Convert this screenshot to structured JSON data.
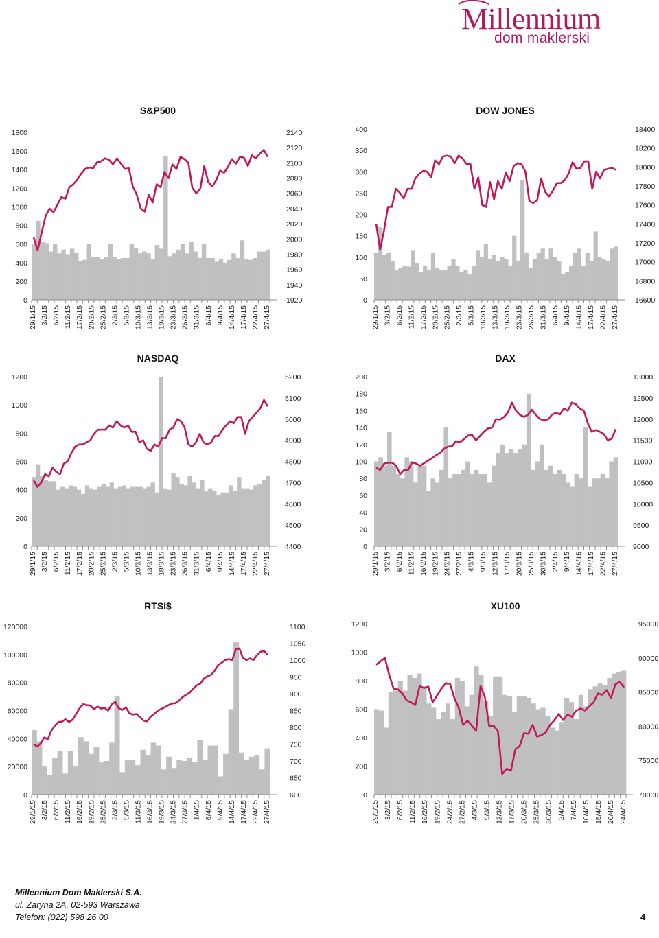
{
  "brand": {
    "name": "Millennium",
    "subtitle": "dom maklerski",
    "color": "#b01a5e"
  },
  "style": {
    "bar_color": "#c0c0c0",
    "line_color": "#c2185b",
    "axis_color": "#888888"
  },
  "footer": {
    "company": "Millennium Dom Maklerski S.A.",
    "address": "ul. Żaryna 2A, 02-593 Warszawa",
    "phone": "Telefon: (022) 598 26 00",
    "page_number": "4"
  },
  "chart_data": [
    {
      "type": "bar-line",
      "title": "S&P500",
      "left_axis": {
        "ticks": [
          "0",
          "200",
          "400",
          "600",
          "800",
          "1000",
          "1200",
          "1400",
          "1600",
          "1800"
        ],
        "range": [
          0,
          1800
        ]
      },
      "right_axis": {
        "ticks": [
          "1920",
          "1940",
          "1960",
          "1980",
          "2000",
          "2020",
          "2040",
          "2060",
          "2080",
          "2100",
          "2120",
          "2140"
        ],
        "range": [
          1920,
          2140
        ]
      },
      "x_labels": [
        "29/1/15",
        "3/2/15",
        "6/2/15",
        "11/2/15",
        "17/2/15",
        "20/2/15",
        "25/2/15",
        "2/3/15",
        "5/3/15",
        "10/3/15",
        "13/3/15",
        "18/3/15",
        "23/3/15",
        "26/3/15",
        "31/3/15",
        "6/4/15",
        "9/4/15",
        "14/4/15",
        "17/4/15",
        "22/4/15",
        "27/4/15"
      ],
      "bars": [
        600,
        850,
        620,
        610,
        520,
        600,
        500,
        540,
        490,
        550,
        510,
        420,
        430,
        600,
        460,
        460,
        440,
        460,
        600,
        460,
        440,
        450,
        450,
        600,
        560,
        500,
        520,
        500,
        440,
        590,
        550,
        1550,
        470,
        500,
        540,
        600,
        500,
        620,
        520,
        450,
        600,
        450,
        450,
        410,
        440,
        400,
        430,
        500,
        450,
        640,
        440,
        430,
        450,
        520,
        520,
        540
      ],
      "line": [
        2002,
        1985,
        2008,
        2030,
        2040,
        2035,
        2045,
        2055,
        2053,
        2068,
        2072,
        2078,
        2086,
        2092,
        2094,
        2093,
        2101,
        2102,
        2106,
        2104,
        2098,
        2106,
        2099,
        2092,
        2093,
        2069,
        2058,
        2040,
        2036,
        2058,
        2048,
        2072,
        2068,
        2088,
        2080,
        2098,
        2092,
        2108,
        2105,
        2100,
        2067,
        2060,
        2066,
        2096,
        2075,
        2069,
        2077,
        2090,
        2087,
        2095,
        2105,
        2099,
        2108,
        2107,
        2096,
        2110,
        2106,
        2112,
        2117,
        2108
      ]
    },
    {
      "type": "bar-line",
      "title": "DOW JONES",
      "left_axis": {
        "ticks": [
          "0",
          "50",
          "100",
          "150",
          "200",
          "250",
          "300",
          "350",
          "400"
        ],
        "range": [
          0,
          400
        ]
      },
      "right_axis": {
        "ticks": [
          "16600",
          "16800",
          "17000",
          "17200",
          "17400",
          "17600",
          "17800",
          "18000",
          "18200",
          "18400"
        ],
        "range": [
          16600,
          18400
        ]
      },
      "x_labels": [
        "29/1/15",
        "3/2/15",
        "6/2/15",
        "11/2/15",
        "17/2/15",
        "20/2/15",
        "25/2/15",
        "2/3/15",
        "5/3/15",
        "10/3/15",
        "13/3/15",
        "18/3/15",
        "23/3/15",
        "26/3/15",
        "31/3/15",
        "6/4/15",
        "9/4/15",
        "14/4/15",
        "17/4/15",
        "22/4/15",
        "27/4/15"
      ],
      "bars": [
        110,
        170,
        105,
        110,
        90,
        70,
        75,
        80,
        78,
        115,
        85,
        65,
        80,
        70,
        110,
        75,
        70,
        70,
        80,
        95,
        80,
        65,
        70,
        60,
        80,
        115,
        100,
        130,
        95,
        105,
        90,
        100,
        95,
        80,
        150,
        90,
        280,
        110,
        75,
        95,
        110,
        120,
        95,
        120,
        100,
        90,
        60,
        65,
        80,
        110,
        120,
        80,
        110,
        90,
        160,
        100,
        95,
        90,
        120,
        125
      ],
      "line": [
        17400,
        17130,
        17330,
        17580,
        17580,
        17770,
        17730,
        17670,
        17770,
        17770,
        17880,
        17930,
        17960,
        17950,
        17890,
        18070,
        18030,
        18110,
        18120,
        18110,
        18040,
        18120,
        18090,
        18030,
        18030,
        17770,
        17890,
        17600,
        17580,
        17840,
        17660,
        17850,
        17770,
        17940,
        17850,
        18010,
        18040,
        18030,
        17950,
        17640,
        17620,
        17650,
        17880,
        17740,
        17690,
        17750,
        17830,
        17830,
        17860,
        17930,
        18050,
        17980,
        17990,
        18060,
        18060,
        17770,
        17950,
        17880,
        17970,
        17980,
        17990,
        17970
      ]
    },
    {
      "type": "bar-line",
      "title": "NASDAQ",
      "left_axis": {
        "ticks": [
          "0",
          "200",
          "400",
          "600",
          "800",
          "1000",
          "1200"
        ],
        "range": [
          0,
          1200
        ]
      },
      "right_axis": {
        "ticks": [
          "4400",
          "4500",
          "4600",
          "4700",
          "4800",
          "4900",
          "5000",
          "5100",
          "5200"
        ],
        "range": [
          4400,
          5200
        ]
      },
      "x_labels": [
        "29/1/15",
        "3/2/15",
        "6/2/15",
        "11/2/15",
        "17/2/15",
        "20/2/15",
        "25/2/15",
        "2/3/15",
        "5/3/15",
        "10/3/15",
        "13/3/15",
        "18/3/15",
        "23/3/15",
        "26/3/15",
        "31/3/15",
        "6/4/15",
        "9/4/15",
        "14/4/15",
        "17/4/15",
        "22/4/15",
        "27/4/15"
      ],
      "bars": [
        490,
        580,
        500,
        470,
        460,
        460,
        400,
        420,
        410,
        430,
        420,
        400,
        370,
        430,
        410,
        400,
        420,
        440,
        420,
        450,
        410,
        420,
        430,
        410,
        420,
        420,
        420,
        410,
        420,
        450,
        380,
        1200,
        410,
        400,
        520,
        490,
        440,
        430,
        500,
        450,
        410,
        470,
        390,
        410,
        390,
        360,
        380,
        380,
        430,
        390,
        490,
        410,
        410,
        400,
        430,
        440,
        470,
        500
      ],
      "line": [
        4710,
        4680,
        4700,
        4740,
        4730,
        4770,
        4750,
        4740,
        4790,
        4800,
        4840,
        4870,
        4880,
        4880,
        4890,
        4900,
        4930,
        4950,
        4950,
        4950,
        4970,
        4960,
        4990,
        4970,
        4960,
        4970,
        4940,
        4940,
        4890,
        4900,
        4860,
        4850,
        4880,
        4870,
        4910,
        4910,
        4950,
        4960,
        5000,
        4990,
        4960,
        4880,
        4870,
        4890,
        4930,
        4890,
        4880,
        4890,
        4920,
        4920,
        4950,
        4970,
        4990,
        4980,
        5010,
        5010,
        4930,
        4990,
        5010,
        5030,
        5050,
        5090,
        5060
      ]
    },
    {
      "type": "bar-line",
      "title": "DAX",
      "left_axis": {
        "ticks": [
          "0",
          "20",
          "40",
          "60",
          "80",
          "100",
          "120",
          "140",
          "160",
          "180",
          "200"
        ],
        "range": [
          0,
          200
        ]
      },
      "right_axis": {
        "ticks": [
          "9000",
          "9500",
          "10000",
          "10500",
          "11000",
          "11500",
          "12000",
          "12500",
          "13000"
        ],
        "range": [
          9000,
          13000
        ]
      },
      "x_labels": [
        "29/1/15",
        "3/2/15",
        "6/2/15",
        "11/2/15",
        "16/2/15",
        "19/2/15",
        "24/2/15",
        "27/2/15",
        "4/3/15",
        "9/3/15",
        "12/3/15",
        "17/3/15",
        "20/3/15",
        "25/3/15",
        "30/3/15",
        "2/4/15",
        "9/4/15",
        "14/4/15",
        "17/4/15",
        "22/4/15",
        "27/4/15"
      ],
      "bars": [
        100,
        105,
        95,
        135,
        95,
        85,
        80,
        105,
        100,
        75,
        95,
        95,
        65,
        80,
        75,
        90,
        140,
        80,
        85,
        85,
        90,
        100,
        85,
        90,
        85,
        85,
        75,
        95,
        110,
        120,
        110,
        115,
        110,
        115,
        120,
        180,
        90,
        100,
        120,
        90,
        95,
        85,
        90,
        85,
        75,
        70,
        85,
        80,
        140,
        70,
        80,
        80,
        85,
        80,
        100,
        105
      ],
      "line": [
        10850,
        10800,
        10950,
        10970,
        10970,
        10900,
        10700,
        10800,
        10800,
        10980,
        10950,
        10900,
        10960,
        11020,
        11080,
        11150,
        11200,
        11300,
        11350,
        11360,
        11480,
        11450,
        11530,
        11610,
        11630,
        11500,
        11600,
        11700,
        11780,
        11800,
        12000,
        11990,
        12050,
        12160,
        12390,
        12200,
        12100,
        12050,
        12100,
        12220,
        12100,
        12000,
        11980,
        11990,
        12100,
        12150,
        12110,
        12250,
        12200,
        12390,
        12350,
        12250,
        12200,
        11900,
        11700,
        11740,
        11700,
        11650,
        11500,
        11540,
        11760
      ]
    },
    {
      "type": "bar-line",
      "title": "RTSI$",
      "left_axis": {
        "ticks": [
          "0",
          "20000",
          "40000",
          "60000",
          "80000",
          "100000",
          "120000"
        ],
        "range": [
          0,
          120000
        ]
      },
      "right_axis": {
        "ticks": [
          "600",
          "650",
          "700",
          "750",
          "800",
          "850",
          "900",
          "950",
          "1000",
          "1050",
          "1100"
        ],
        "range": [
          600,
          1100
        ]
      },
      "x_labels": [
        "29/1/15",
        "3/2/15",
        "6/2/15",
        "11/2/15",
        "16/2/15",
        "19/2/15",
        "25/2/15",
        "2/3/15",
        "5/3/15",
        "11/3/15",
        "16/3/15",
        "19/3/15",
        "24/3/15",
        "27/3/15",
        "1/4/15",
        "6/4/15",
        "9/4/15",
        "14/4/15",
        "17/4/15",
        "22/4/15",
        "27/4/15"
      ],
      "bars": [
        46000,
        38000,
        20000,
        14000,
        26000,
        31000,
        15000,
        31000,
        20000,
        41000,
        38000,
        29000,
        34000,
        23000,
        24000,
        37000,
        70000,
        16000,
        25000,
        25000,
        21000,
        32000,
        28000,
        37000,
        35000,
        18000,
        27000,
        19000,
        25000,
        24000,
        26000,
        23000,
        39000,
        25000,
        35000,
        35000,
        13000,
        29000,
        61000,
        109000,
        30000,
        25000,
        27000,
        28000,
        18000,
        33000
      ],
      "line": [
        750,
        743,
        752,
        770,
        765,
        790,
        805,
        816,
        817,
        824,
        816,
        823,
        840,
        858,
        869,
        866,
        865,
        854,
        862,
        856,
        858,
        850,
        868,
        876,
        857,
        852,
        860,
        842,
        838,
        840,
        830,
        820,
        818,
        832,
        840,
        850,
        855,
        860,
        866,
        871,
        872,
        880,
        890,
        897,
        903,
        915,
        925,
        930,
        945,
        952,
        956,
        968,
        985,
        992,
        1000,
        1003,
        1000,
        1032,
        1035,
        1007,
        1000,
        1005,
        1000,
        1015,
        1025,
        1027,
        1015
      ]
    },
    {
      "type": "bar-line",
      "title": "XU100",
      "left_axis": {
        "ticks": [
          "0",
          "200",
          "400",
          "600",
          "800",
          "1000",
          "1200"
        ],
        "range": [
          0,
          1200
        ]
      },
      "right_axis": {
        "ticks": [
          "70000",
          "75000",
          "80000",
          "85000",
          "90000",
          "95000"
        ],
        "range": [
          70000,
          95000
        ]
      },
      "x_labels": [
        "29/1/15",
        "3/2/15",
        "6/2/15",
        "11/2/15",
        "16/2/15",
        "19/2/15",
        "24/2/15",
        "27/2/15",
        "4/3/15",
        "9/3/15",
        "12/3/15",
        "17/3/15",
        "20/3/15",
        "25/3/15",
        "30/3/15",
        "2/4/15",
        "7/4/15",
        "10/4/15",
        "15/4/15",
        "20/4/15",
        "24/4/15"
      ],
      "bars": [
        600,
        590,
        470,
        720,
        730,
        800,
        730,
        840,
        820,
        850,
        760,
        640,
        610,
        530,
        580,
        640,
        530,
        820,
        800,
        620,
        700,
        900,
        840,
        660,
        550,
        830,
        830,
        700,
        690,
        580,
        690,
        690,
        680,
        640,
        600,
        610,
        550,
        470,
        450,
        510,
        680,
        650,
        530,
        700,
        620,
        740,
        760,
        780,
        770,
        820,
        850,
        860,
        870
      ],
      "line": [
        89000,
        89500,
        90000,
        87500,
        85500,
        85400,
        84800,
        83800,
        83500,
        83100,
        85900,
        85600,
        85800,
        83500,
        84500,
        85500,
        86300,
        86200,
        84100,
        82700,
        80200,
        80800,
        80100,
        79300,
        85900,
        84300,
        80000,
        80100,
        79300,
        73000,
        73800,
        73500,
        76600,
        77100,
        79000,
        78900,
        80200,
        78500,
        78700,
        79100,
        80200,
        80900,
        81800,
        80900,
        81700,
        81400,
        82300,
        82600,
        82300,
        82900,
        83500,
        84800,
        84600,
        85300,
        84100,
        86100,
        86500,
        85700
      ]
    }
  ]
}
